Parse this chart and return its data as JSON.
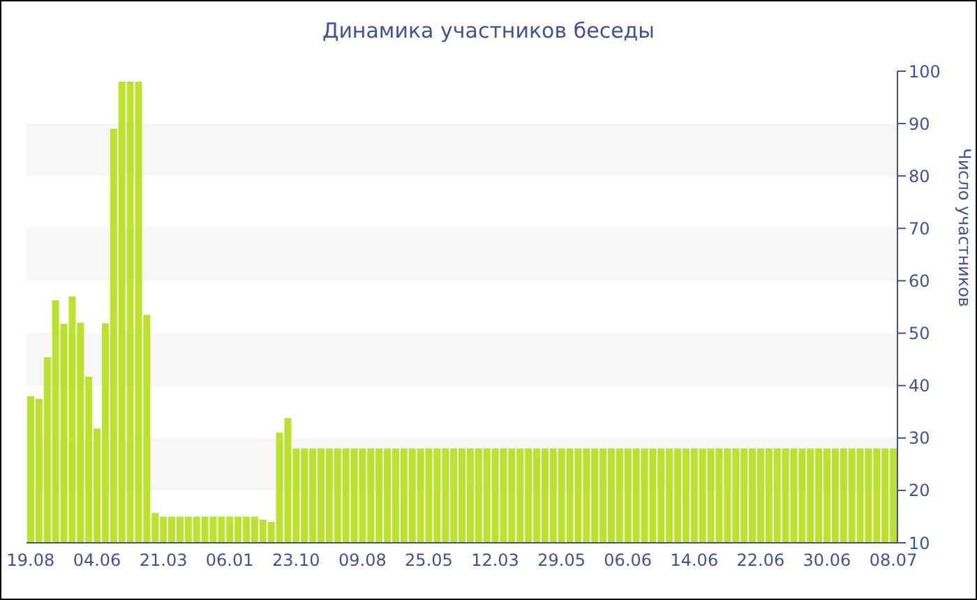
{
  "chart_data": {
    "type": "bar",
    "title": "Динамика участников беседы",
    "ylabel": "Число участников",
    "categories": [
      "19.08",
      null,
      null,
      null,
      null,
      null,
      null,
      null,
      "04.06",
      null,
      null,
      null,
      null,
      null,
      null,
      null,
      "21.03",
      null,
      null,
      null,
      null,
      null,
      null,
      null,
      "06.01",
      null,
      null,
      null,
      null,
      null,
      null,
      null,
      "23.10",
      null,
      null,
      null,
      null,
      null,
      null,
      null,
      "09.08",
      null,
      null,
      null,
      null,
      null,
      null,
      null,
      "25.05",
      null,
      null,
      null,
      null,
      null,
      null,
      null,
      "12.03",
      null,
      null,
      null,
      null,
      null,
      null,
      null,
      "29.05",
      null,
      null,
      null,
      null,
      null,
      null,
      null,
      "06.06",
      null,
      null,
      null,
      null,
      null,
      null,
      null,
      "14.06",
      null,
      null,
      null,
      null,
      null,
      null,
      null,
      "22.06",
      null,
      null,
      null,
      null,
      null,
      null,
      null,
      "30.06",
      null,
      null,
      null,
      null,
      null,
      null,
      null,
      "08.07"
    ],
    "values": [
      38,
      37.5,
      45.4,
      56.3,
      51.8,
      57,
      52,
      41.7,
      31.8,
      51.9,
      89,
      98,
      98,
      98,
      53.5,
      15.7,
      15,
      15,
      15,
      15,
      15,
      15,
      15,
      15,
      15,
      15,
      15,
      15,
      14.4,
      14,
      31,
      33.8,
      28,
      28,
      28,
      28,
      28,
      28,
      28,
      28,
      28,
      28,
      28,
      28,
      28,
      28,
      28,
      28,
      28,
      28,
      28,
      28,
      28,
      28,
      28,
      28,
      28,
      28,
      28,
      28,
      28,
      28,
      28,
      28,
      28,
      28,
      28,
      28,
      28,
      28,
      28,
      28,
      28,
      28,
      28,
      28,
      28,
      28,
      28,
      28,
      28,
      28,
      28,
      28,
      28,
      28,
      28,
      28,
      28,
      28,
      28,
      28,
      28,
      28,
      28,
      28,
      28,
      28,
      28,
      28,
      28,
      28,
      28,
      28,
      28
    ],
    "color": "#bde22d",
    "ylim": [
      10,
      100
    ],
    "yticks": [
      10,
      20,
      30,
      40,
      50,
      60,
      70,
      80,
      90,
      100
    ],
    "bands": [
      {
        "axis": "y",
        "from": 20,
        "to": 30,
        "color": "#f7f7f7"
      },
      {
        "axis": "y",
        "from": 40,
        "to": 50,
        "color": "#f7f7f7"
      },
      {
        "axis": "y",
        "from": 60,
        "to": 70,
        "color": "#f7f7f7"
      },
      {
        "axis": "y",
        "from": 80,
        "to": 90,
        "color": "#f7f7f7"
      }
    ]
  }
}
